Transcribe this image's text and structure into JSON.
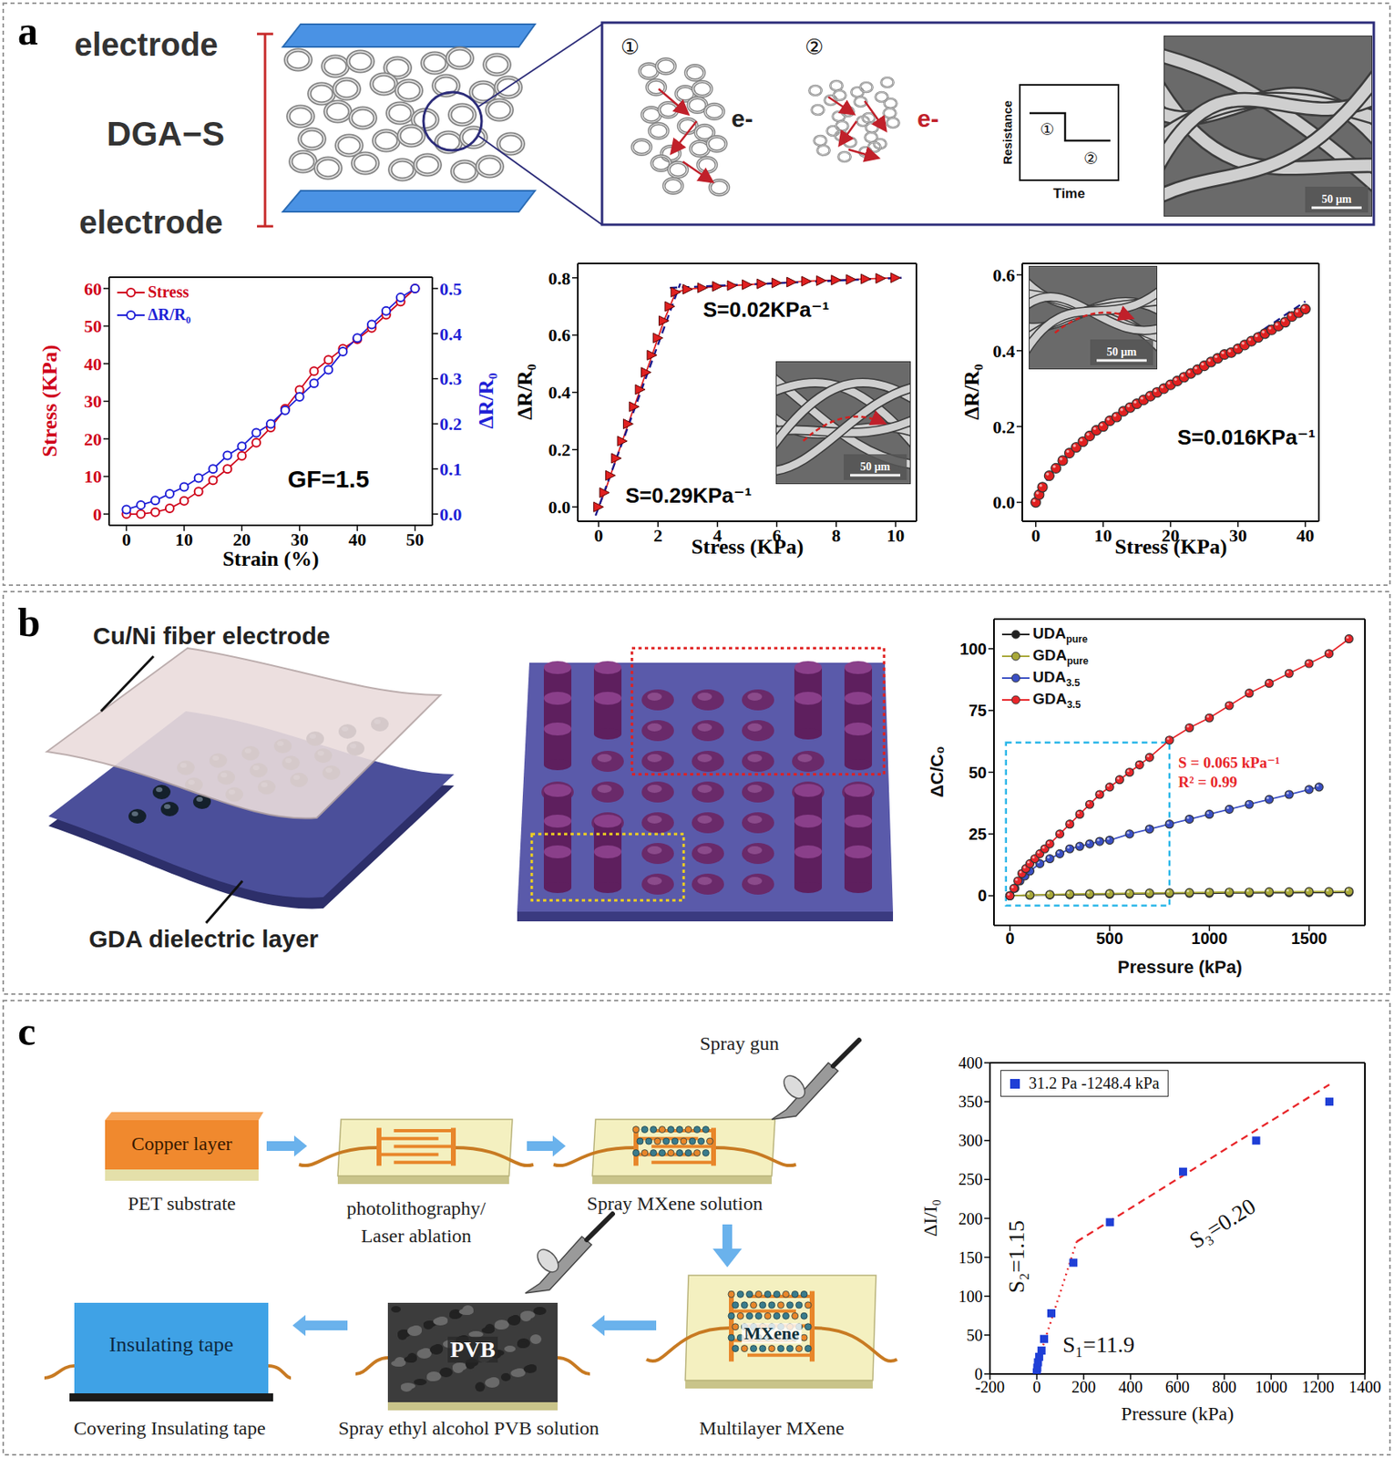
{
  "panel_labels": [
    "a",
    "b",
    "c"
  ],
  "diagram_a": {
    "electrode_top": "electrode",
    "sample": "DGA−S",
    "electrode_bottom": "electrode",
    "stages": [
      "①",
      "②"
    ],
    "electron": "e-",
    "resistance_axis": "Resistance",
    "time_axis": "Time",
    "resistance_levels": [
      "①",
      "②"
    ],
    "scale_bar": "50 μm"
  },
  "diagram_b": {
    "electrode": "Cu/Ni fiber electrode",
    "dielectric": "GDA dielectric layer"
  },
  "diagram_c": {
    "copper": "Copper layer",
    "substrate": "PET substrate",
    "patterning": [
      "photolithography/",
      "Laser ablation"
    ],
    "spray_gun": "Spray gun",
    "spray_mxene": "Spray MXene solution",
    "mxene": "MXene",
    "multilayer": "Multilayer MXene",
    "pvb": "PVB",
    "spray_pvb": "Spray ethyl alcohol PVB solution",
    "tape": "Insulating tape",
    "covering": "Covering Insulating tape"
  },
  "chart_data": [
    {
      "type": "line",
      "xlabel": "Strain (%)",
      "ylabel": "Stress (KPa)",
      "y2label": "ΔR/R₀",
      "xlim": [
        -3,
        53
      ],
      "xticks": [
        0,
        10,
        20,
        30,
        40,
        50
      ],
      "ylim": [
        -3,
        63
      ],
      "yticks": [
        0,
        10,
        20,
        30,
        40,
        50,
        60
      ],
      "y2lim": [
        -0.025,
        0.525
      ],
      "y2ticks": [
        {
          "value": 0,
          "label": "0.0"
        },
        0.1,
        0.2,
        0.3,
        0.4,
        0.5
      ],
      "legend": "upper left",
      "annotations": [
        "GF=1.5"
      ],
      "x": [
        0,
        2.5,
        5,
        7.5,
        10,
        12.5,
        15,
        17.5,
        20,
        22.5,
        25,
        27.5,
        30,
        32.5,
        35,
        37.5,
        40,
        42.5,
        45,
        47.5,
        50
      ],
      "series": [
        {
          "name": "Stress",
          "color": "#d0021b",
          "marker": "open_circle",
          "line_style": "solid",
          "values": [
            0,
            0,
            0.5,
            1.5,
            3.5,
            6,
            9,
            12,
            15.5,
            19,
            23,
            28,
            33,
            38,
            41,
            44,
            46.5,
            49.5,
            53,
            56.5,
            60
          ]
        },
        {
          "name": "ΔR/R₀",
          "color": "#1f1fd6",
          "marker": "open_circle",
          "line_style": "solid",
          "axis": "y2",
          "values": [
            0.01,
            0.02,
            0.03,
            0.045,
            0.06,
            0.08,
            0.1,
            0.13,
            0.15,
            0.18,
            0.2,
            0.23,
            0.26,
            0.29,
            0.32,
            0.36,
            0.39,
            0.42,
            0.45,
            0.48,
            0.5
          ]
        }
      ]
    },
    {
      "type": "line",
      "xlabel": "Stress (KPa)",
      "ylabel": "ΔR/R₀",
      "xlim": [
        -0.7,
        10.7
      ],
      "xticks": [
        0,
        2,
        4,
        6,
        8,
        10
      ],
      "ylim": [
        -0.05,
        0.85
      ],
      "yticks": [
        {
          "value": 0,
          "label": "0.0"
        },
        0.2,
        0.4,
        0.6,
        0.8
      ],
      "annotations": [
        "S=0.02KPa⁻¹",
        "S=0.29KPa⁻¹"
      ],
      "inset_scale_bar": "50 μm",
      "x": [
        0,
        0.2,
        0.4,
        0.6,
        0.8,
        1.0,
        1.2,
        1.4,
        1.6,
        1.8,
        2.0,
        2.2,
        2.4,
        2.6,
        3.0,
        3.5,
        4.0,
        4.5,
        5.0,
        5.5,
        6.0,
        6.5,
        7.0,
        7.5,
        8.0,
        8.5,
        9.0,
        9.5,
        10.0
      ],
      "values": [
        0.0,
        0.05,
        0.11,
        0.17,
        0.23,
        0.29,
        0.35,
        0.41,
        0.47,
        0.53,
        0.59,
        0.65,
        0.7,
        0.75,
        0.76,
        0.765,
        0.77,
        0.773,
        0.776,
        0.779,
        0.782,
        0.785,
        0.788,
        0.79,
        0.792,
        0.794,
        0.796,
        0.798,
        0.8
      ],
      "color": "#e02020",
      "marker": "triangle",
      "line_style": "solid",
      "fits": [
        {
          "x": [
            -0.1,
            2.75
          ],
          "values": [
            -0.03,
            0.78
          ],
          "color": "#1a1a8c",
          "line_style": "dashed"
        },
        {
          "x": [
            2.4,
            10.2
          ],
          "values": [
            0.765,
            0.8
          ],
          "color": "#1a1a8c",
          "line_style": "dashed"
        }
      ]
    },
    {
      "type": "line",
      "xlabel": "Stress (KPa)",
      "ylabel": "ΔR/R₀",
      "xlim": [
        -2,
        42
      ],
      "xticks": [
        0,
        10,
        20,
        30,
        40
      ],
      "ylim": [
        -0.05,
        0.63
      ],
      "yticks": [
        {
          "value": 0,
          "label": "0.0"
        },
        0.2,
        0.4,
        0.6
      ],
      "annotations": [
        "S=0.016KPa⁻¹"
      ],
      "inset_scale_bar": "50 μm",
      "x": [
        0,
        0.5,
        1,
        2,
        3,
        4,
        5,
        6,
        7,
        8,
        9,
        10,
        11,
        12,
        13,
        14,
        15,
        16,
        17,
        18,
        19,
        20,
        21,
        22,
        23,
        24,
        25,
        26,
        27,
        28,
        29,
        30,
        31,
        32,
        33,
        34,
        35,
        36,
        37,
        38,
        39,
        40
      ],
      "values": [
        0,
        0.02,
        0.04,
        0.07,
        0.09,
        0.11,
        0.13,
        0.145,
        0.16,
        0.175,
        0.19,
        0.2,
        0.215,
        0.225,
        0.24,
        0.25,
        0.26,
        0.27,
        0.28,
        0.29,
        0.3,
        0.31,
        0.32,
        0.33,
        0.34,
        0.35,
        0.36,
        0.37,
        0.38,
        0.39,
        0.395,
        0.405,
        0.415,
        0.425,
        0.435,
        0.445,
        0.455,
        0.465,
        0.475,
        0.49,
        0.5,
        0.51
      ],
      "color": "#e02020",
      "marker": "circle",
      "line_style": "none",
      "fits": [
        {
          "x": [
            0,
            2,
            5,
            10,
            20,
            30,
            40
          ],
          "values": [
            0.0,
            0.07,
            0.13,
            0.2,
            0.31,
            0.41,
            0.53
          ],
          "color": "#1a1a8c",
          "line_style": "dashed"
        }
      ]
    },
    {
      "type": "line",
      "xlabel": "Pressure (kPa)",
      "ylabel": "ΔC/C₀",
      "xlim": [
        -80,
        1780
      ],
      "xticks": [
        0,
        500,
        1000,
        1500
      ],
      "ylim": [
        -12,
        112
      ],
      "yticks": [
        0,
        25,
        50,
        75,
        100
      ],
      "legend": "upper left",
      "annotations": [
        "S = 0.065 kPa⁻¹",
        "R² = 0.99"
      ],
      "highlight_box": {
        "x": [
          -20,
          800
        ],
        "y": [
          -4,
          62
        ],
        "color": "#29b6e8"
      },
      "series": [
        {
          "name": "UDApure",
          "color": "#222222",
          "marker": "circle",
          "line_style": "solid",
          "x": [
            0,
            100,
            200,
            300,
            400,
            500,
            600,
            700,
            800,
            900,
            1000,
            1100,
            1200,
            1300,
            1400,
            1500,
            1600,
            1700
          ],
          "values": [
            0,
            0.2,
            0.3,
            0.4,
            0.5,
            0.6,
            0.7,
            0.8,
            0.9,
            1,
            1,
            1.1,
            1.1,
            1.2,
            1.2,
            1.3,
            1.3,
            1.4
          ]
        },
        {
          "name": "GDApure",
          "color": "#a8a838",
          "marker": "circle",
          "line_style": "solid",
          "x": [
            0,
            100,
            200,
            300,
            400,
            500,
            600,
            700,
            800,
            900,
            1000,
            1100,
            1200,
            1300,
            1400,
            1500,
            1600,
            1700
          ],
          "values": [
            0,
            0.3,
            0.5,
            0.7,
            0.8,
            0.9,
            1,
            1.1,
            1.2,
            1.3,
            1.4,
            1.5,
            1.5,
            1.6,
            1.6,
            1.7,
            1.7,
            1.8
          ]
        },
        {
          "name": "UDA3.5",
          "color": "#3a4fc4",
          "marker": "circle",
          "line_style": "solid",
          "x": [
            0,
            25,
            50,
            75,
            100,
            150,
            200,
            250,
            300,
            350,
            400,
            450,
            500,
            600,
            700,
            800,
            900,
            1000,
            1100,
            1200,
            1300,
            1400,
            1500,
            1550
          ],
          "values": [
            0,
            3,
            6,
            8,
            10,
            13,
            15,
            17,
            19,
            20,
            21,
            22,
            22.5,
            25,
            27,
            29,
            31,
            33,
            35,
            37,
            39,
            41,
            43,
            44
          ]
        },
        {
          "name": "GDA3.5",
          "color": "#e8262a",
          "marker": "circle",
          "line_style": "solid",
          "x": [
            0,
            20,
            40,
            60,
            80,
            100,
            125,
            150,
            175,
            200,
            250,
            300,
            350,
            400,
            450,
            500,
            550,
            600,
            650,
            700,
            800,
            900,
            1000,
            1100,
            1200,
            1300,
            1400,
            1500,
            1600,
            1700
          ],
          "values": [
            0,
            3,
            6,
            9,
            11,
            13,
            15,
            17,
            19,
            21,
            25,
            29,
            33,
            37,
            41,
            44,
            47,
            50,
            53,
            56,
            63,
            68,
            72,
            77,
            82,
            86,
            90,
            94,
            98,
            104
          ]
        }
      ]
    },
    {
      "type": "scatter",
      "xlabel": "Pressure (kPa)",
      "ylabel": "ΔI/I₀",
      "xlim": [
        -200,
        1400
      ],
      "xticks": [
        -200,
        0,
        200,
        400,
        600,
        800,
        1000,
        1200,
        1400
      ],
      "ylim": [
        0,
        400
      ],
      "yticks": [
        0,
        50,
        100,
        150,
        200,
        250,
        300,
        350,
        400
      ],
      "legend": "upper left",
      "annotations": [
        "S₁=11.9",
        "S₂=1.15",
        "S₃=0.20"
      ],
      "series": [
        {
          "name": "31.2 Pa -1248.4 kPa",
          "color": "#1f3fd6",
          "marker": "square",
          "line_style": "none",
          "x": [
            0.0312,
            2,
            5,
            10,
            20,
            31,
            62,
            156,
            312,
            624,
            936,
            1248.4
          ],
          "values": [
            2,
            8,
            15,
            22,
            30,
            45,
            78,
            143,
            195,
            260,
            300,
            350
          ]
        }
      ],
      "fits": [
        {
          "x": [
            0,
            20
          ],
          "values": [
            0,
            30
          ],
          "color": "#e8262a",
          "line_style": "dotted"
        },
        {
          "x": [
            20,
            170
          ],
          "values": [
            30,
            170
          ],
          "color": "#e8262a",
          "line_style": "dotted"
        },
        {
          "x": [
            170,
            1248.4
          ],
          "values": [
            170,
            372
          ],
          "color": "#e8262a",
          "line_style": "dashed"
        }
      ]
    }
  ]
}
